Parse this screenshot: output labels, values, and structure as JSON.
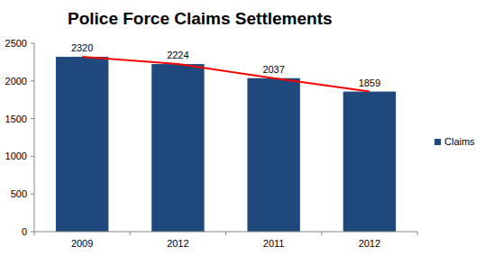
{
  "chart_data": {
    "type": "bar",
    "title": "Police Force Claims Settlements",
    "categories": [
      "2009",
      "2012",
      "2011",
      "2012"
    ],
    "series": [
      {
        "name": "Claims",
        "type": "bar",
        "color": "#1f497d",
        "values": [
          2320,
          2224,
          2037,
          1859
        ]
      },
      {
        "type": "line",
        "color": "#ff0000",
        "values": [
          2320,
          2224,
          2037,
          1859
        ]
      }
    ],
    "ylim": [
      0,
      2500
    ],
    "yticks": [
      0,
      500,
      1000,
      1500,
      2000,
      2500
    ],
    "grid": false,
    "legend": "right",
    "data_labels": true
  }
}
